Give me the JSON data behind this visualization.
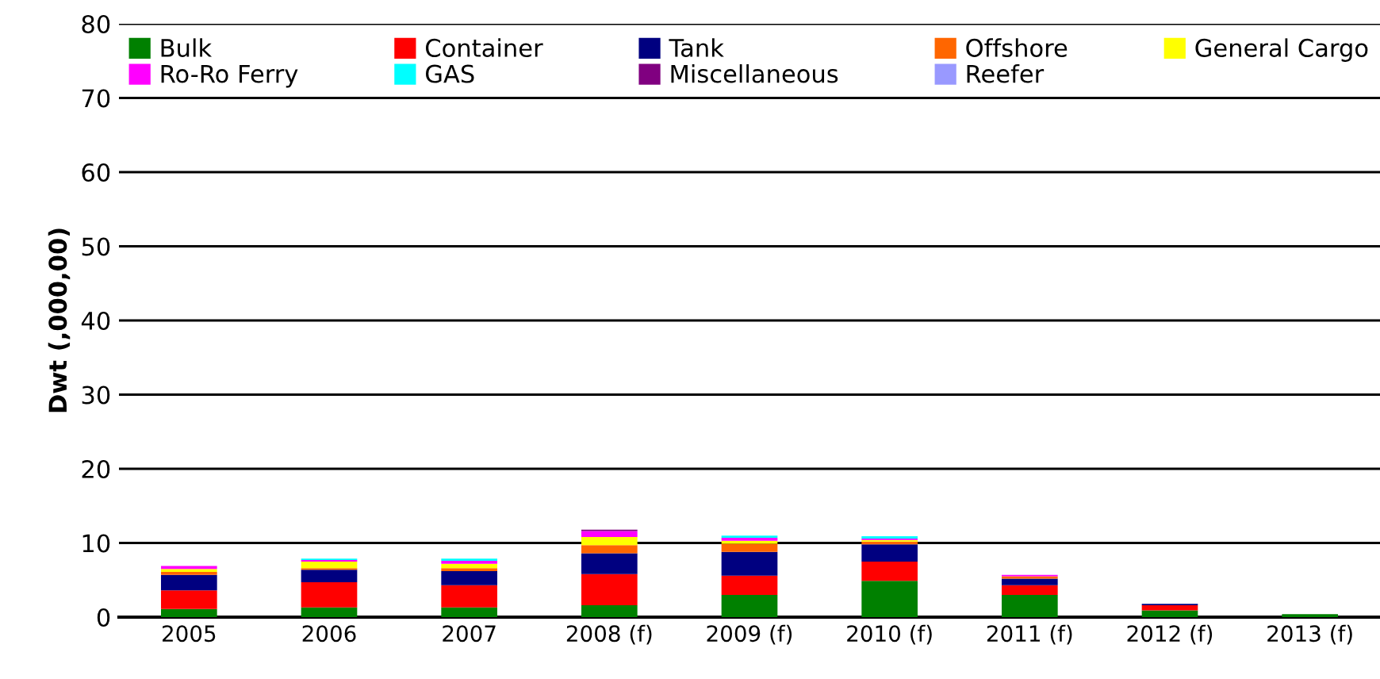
{
  "chart_data": {
    "type": "bar",
    "stacked": true,
    "ylabel": "Dwt (,000,00)",
    "categories": [
      "2005",
      "2006",
      "2007",
      "2008 (f)",
      "2009 (f)",
      "2010 (f)",
      "2011 (f)",
      "2012 (f)",
      "2013 (f)"
    ],
    "series": [
      {
        "name": "Bulk",
        "color": "#008000",
        "values": [
          1.1,
          1.3,
          1.3,
          1.6,
          3.0,
          4.9,
          3.0,
          0.9,
          0.4
        ]
      },
      {
        "name": "Container",
        "color": "#ff0000",
        "values": [
          2.5,
          3.4,
          3.0,
          4.2,
          2.6,
          2.6,
          1.3,
          0.7,
          0
        ]
      },
      {
        "name": "Tank",
        "color": "#000080",
        "values": [
          2.1,
          1.7,
          1.9,
          2.8,
          3.2,
          2.3,
          0.9,
          0.2,
          0
        ]
      },
      {
        "name": "Offshore",
        "color": "#ff6600",
        "values": [
          0.4,
          0.2,
          0.4,
          1.1,
          1.1,
          0.4,
          0.3,
          0,
          0
        ]
      },
      {
        "name": "General Cargo",
        "color": "#ffff00",
        "values": [
          0.4,
          0.9,
          0.6,
          1.1,
          0.4,
          0.2,
          0,
          0,
          0
        ]
      },
      {
        "name": "Ro-Ro Ferry",
        "color": "#ff00ff",
        "values": [
          0.4,
          0.2,
          0.4,
          0.8,
          0.4,
          0.2,
          0.2,
          0,
          0
        ]
      },
      {
        "name": "GAS",
        "color": "#00ffff",
        "values": [
          0,
          0.2,
          0.3,
          0,
          0.3,
          0.3,
          0,
          0,
          0
        ]
      },
      {
        "name": "Miscellaneous",
        "color": "#800080",
        "values": [
          0,
          0,
          0,
          0.2,
          0,
          0,
          0,
          0,
          0
        ]
      },
      {
        "name": "Reefer",
        "color": "#9999ff",
        "values": [
          0,
          0,
          0,
          0,
          0,
          0,
          0,
          0,
          0
        ]
      }
    ],
    "ylim": [
      0,
      80
    ],
    "yticks": [
      0,
      10,
      20,
      30,
      40,
      50,
      60,
      70,
      80
    ],
    "grid": "y",
    "legend": "top"
  }
}
